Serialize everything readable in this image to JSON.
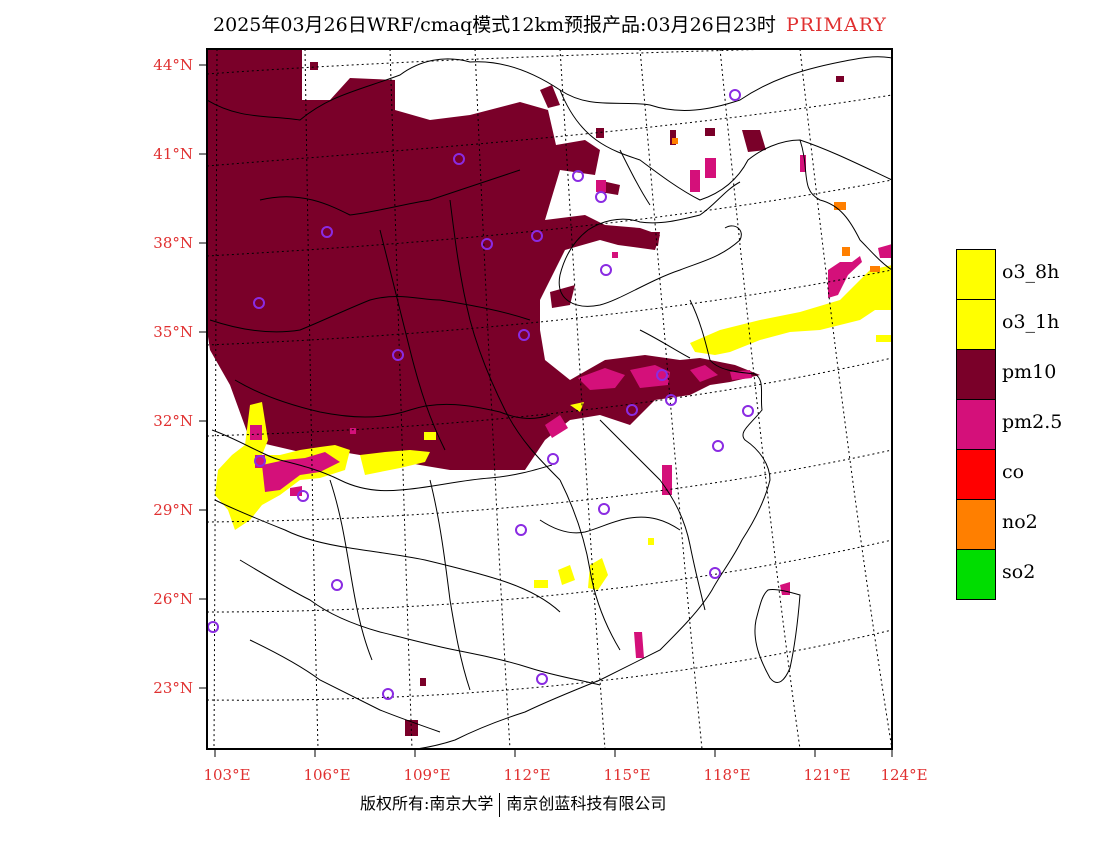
{
  "title": {
    "text": "2025年03月26日WRF/cmaq模式12km预报产品:03月26日23时",
    "tag": "PRIMARY"
  },
  "map": {
    "latitude_labels": [
      "44°N",
      "41°N",
      "38°N",
      "35°N",
      "32°N",
      "29°N",
      "26°N",
      "23°N"
    ],
    "longitude_labels": [
      "103°E",
      "106°E",
      "109°E",
      "112°E",
      "115°E",
      "118°E",
      "121°E",
      "124°E"
    ],
    "colors": {
      "pm10": "#7a0029",
      "o3": "#ffff00",
      "pm25": "#d4107a",
      "co": "#ff0000",
      "no2": "#ff7f00",
      "so2": "#00dd00",
      "station": "#8a2be2",
      "label": "#e03030"
    }
  },
  "legend": {
    "items": [
      {
        "label": "o3_8h",
        "color": "#ffff00"
      },
      {
        "label": "o3_1h",
        "color": "#ffff00"
      },
      {
        "label": "pm10",
        "color": "#7a0029"
      },
      {
        "label": "pm2.5",
        "color": "#d4107a"
      },
      {
        "label": "co",
        "color": "#ff0000"
      },
      {
        "label": "no2",
        "color": "#ff7f00"
      },
      {
        "label": "so2",
        "color": "#00dd00"
      }
    ]
  },
  "footer": {
    "left": "版权所有:南京大学",
    "right": "南京创蓝科技有限公司"
  }
}
